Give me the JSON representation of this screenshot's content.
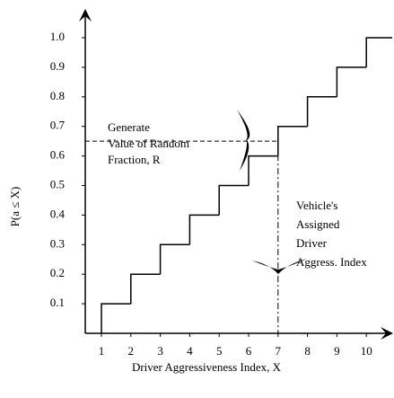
{
  "chart_data": {
    "type": "step",
    "x": [
      1,
      2,
      3,
      4,
      5,
      6,
      7,
      8,
      9,
      10
    ],
    "values": [
      0.1,
      0.2,
      0.3,
      0.4,
      0.5,
      0.6,
      0.7,
      0.8,
      0.9,
      1.0
    ],
    "color": "#000000",
    "xlabel": "Driver Aggressiveness Index, X",
    "ylabel": "P(a ≤ X)",
    "xticks": [
      1,
      2,
      3,
      4,
      5,
      6,
      7,
      8,
      9,
      10
    ],
    "yticks": [
      0.1,
      0.2,
      0.3,
      0.4,
      0.5,
      0.6,
      0.7,
      0.8,
      0.9,
      {
        "value": 1.0,
        "label": "1.0"
      }
    ],
    "random_fraction": 0.65,
    "assigned_index": 7,
    "annotations": {
      "left": [
        "Generate",
        "Value of Random",
        "Fraction, R"
      ],
      "right": [
        "Vehicle's",
        "Assigned",
        "Driver",
        "Aggress. Index"
      ]
    }
  }
}
